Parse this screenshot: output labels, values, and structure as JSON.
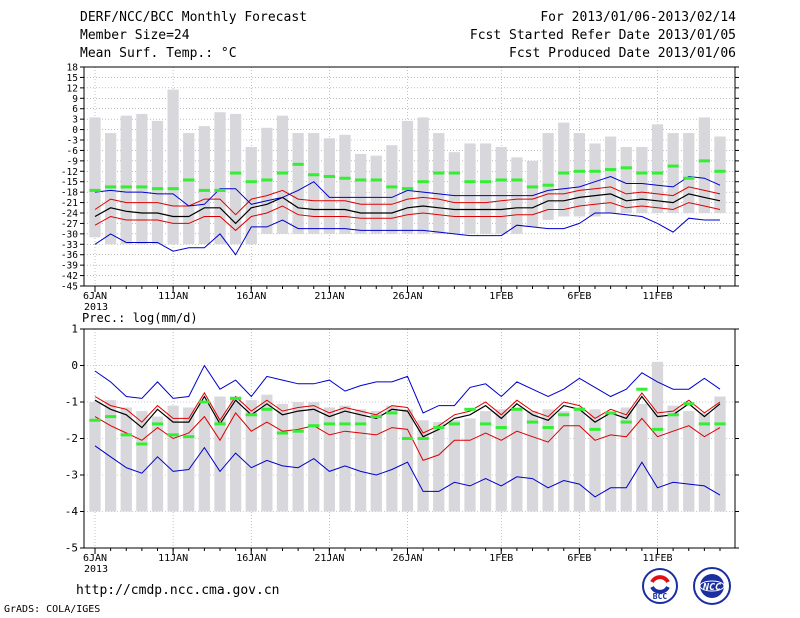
{
  "header": {
    "title": "DERF/NCC/BCC Monthly Forecast",
    "member_size": "Member Size=24",
    "variable": "Mean Surf. Temp.: °C",
    "period": "For 2013/01/06-2013/02/14",
    "started": "Fcst Started Refer Date 2013/01/05",
    "produced": "Fcst Produced Date 2013/01/06"
  },
  "footer": {
    "url": "http://cmdp.ncc.cma.gov.cn",
    "grads": "GrADS: COLA/IGES",
    "logo_bcc": "BCC",
    "logo_ncc": "NCC"
  },
  "colors": {
    "bar": "#d8d8dc",
    "mean": "#000000",
    "inner": "#dd0000",
    "outer": "#0000cc",
    "clim": "#33ee33",
    "grid": "#999999"
  },
  "chart_data": [
    {
      "type": "bar",
      "title": "Mean Surf. Temp.: °C",
      "xlabel": "",
      "ylabel": "",
      "ylim": [
        -45,
        18
      ],
      "yticks": [
        18,
        15,
        12,
        9,
        6,
        3,
        0,
        -3,
        -6,
        -9,
        -12,
        -15,
        -18,
        -21,
        -24,
        -27,
        -30,
        -33,
        -36,
        -39,
        -42,
        -45
      ],
      "xticks": [
        {
          "day": 0,
          "label": "6JAN",
          "sub": "2013"
        },
        {
          "day": 5,
          "label": "11JAN"
        },
        {
          "day": 10,
          "label": "16JAN"
        },
        {
          "day": 15,
          "label": "21JAN"
        },
        {
          "day": 20,
          "label": "26JAN"
        },
        {
          "day": 26,
          "label": "1FEB"
        },
        {
          "day": 31,
          "label": "6FEB"
        },
        {
          "day": 36,
          "label": "11FEB"
        }
      ],
      "bars_top": [
        3.5,
        -1,
        4,
        4.5,
        2.5,
        11.5,
        -1,
        1,
        5,
        4.5,
        -5,
        0.5,
        4,
        -1,
        -1,
        -2.5,
        -1.5,
        -7,
        -7.5,
        -4.5,
        2.5,
        3.5,
        -1,
        -6.5,
        -4,
        -4,
        -5,
        -8,
        -9,
        -1,
        2,
        -1,
        -4,
        -2,
        -5,
        -5,
        1.5,
        -1,
        -1,
        3.5,
        -2
      ],
      "bars_bottom": [
        -31,
        -33,
        -33,
        -33,
        -33,
        -33,
        -33,
        -33,
        -33,
        -33,
        -33,
        -30,
        -30,
        -30,
        -30,
        -30,
        -30,
        -30,
        -30,
        -30,
        -30,
        -30,
        -30,
        -30,
        -30,
        -30,
        -30,
        -30,
        -28,
        -26,
        -25,
        -25,
        -25,
        -24,
        -24,
        -24,
        -24,
        -24,
        -24,
        -24,
        -24
      ],
      "series": [
        {
          "name": "ensemble-mean",
          "values": [
            -25,
            -22.5,
            -23.5,
            -24,
            -24,
            -25,
            -25,
            -22.5,
            -22.5,
            -27,
            -22.5,
            -21.5,
            -19.5,
            -22.5,
            -23,
            -23,
            -23,
            -24,
            -24,
            -24,
            -22.5,
            -22,
            -22.5,
            -23,
            -23,
            -23,
            -23,
            -22.5,
            -22.5,
            -20.5,
            -20.5,
            -19.5,
            -19,
            -18.5,
            -20.5,
            -20,
            -20.5,
            -21,
            -18.5,
            -19.5,
            -20.5
          ]
        },
        {
          "name": "upper-inner",
          "values": [
            -23,
            -20,
            -21,
            -21,
            -21,
            -22,
            -22,
            -20,
            -20,
            -24.5,
            -20,
            -19,
            -17.5,
            -20,
            -20.5,
            -20.5,
            -20.5,
            -21.5,
            -21.5,
            -21.5,
            -20,
            -19.5,
            -20,
            -21,
            -21,
            -21,
            -20.5,
            -20,
            -20,
            -18.5,
            -18.5,
            -17.5,
            -17,
            -16.5,
            -18.5,
            -18,
            -18.5,
            -19,
            -16.5,
            -17.5,
            -18.5
          ]
        },
        {
          "name": "lower-inner",
          "values": [
            -27.5,
            -25,
            -26,
            -26,
            -26,
            -27,
            -27,
            -25,
            -25,
            -29,
            -25,
            -24,
            -22,
            -24.5,
            -25,
            -25,
            -25,
            -25.5,
            -25.5,
            -25.5,
            -24.5,
            -24,
            -24.5,
            -25,
            -25,
            -25,
            -25,
            -24.5,
            -24.5,
            -23,
            -23,
            -22,
            -21.5,
            -21,
            -22.5,
            -22,
            -22.5,
            -23,
            -21,
            -22,
            -23
          ]
        },
        {
          "name": "upper-outer",
          "values": [
            -18,
            -17.5,
            -18,
            -18,
            -18.5,
            -18.5,
            -22,
            -21.5,
            -17,
            -17,
            -21.5,
            -20.5,
            -19.5,
            -17.5,
            -15,
            -19.5,
            -19.5,
            -19.5,
            -19.5,
            -19.5,
            -17.5,
            -18,
            -18.5,
            -19,
            -19,
            -19,
            -19,
            -19,
            -19,
            -17.5,
            -17,
            -16.5,
            -15,
            -13.5,
            -15.5,
            -15.5,
            -16,
            -16.5,
            -13.5,
            -14,
            -16
          ]
        },
        {
          "name": "lower-outer",
          "values": [
            -33,
            -30,
            -32.5,
            -32.5,
            -32.5,
            -35,
            -34,
            -34,
            -30,
            -36,
            -28,
            -28,
            -26,
            -28.5,
            -28.5,
            -28.5,
            -28.5,
            -29,
            -29,
            -29,
            -29,
            -29,
            -29.5,
            -30,
            -30.5,
            -30.5,
            -30.5,
            -27.5,
            -28,
            -28.5,
            -28.5,
            -27,
            -24,
            -24,
            -24.5,
            -25,
            -27,
            -29.5,
            -25.5,
            -26,
            -26
          ]
        },
        {
          "name": "climatology",
          "values": [
            -17.5,
            -16.5,
            -16.5,
            -16.5,
            -17,
            -17,
            -14.5,
            -17.5,
            -17.5,
            -12.5,
            -15,
            -14.5,
            -12.5,
            -10,
            -13,
            -13.5,
            -14,
            -14.5,
            -14.5,
            -16.5,
            -17,
            -15,
            -12.5,
            -12.5,
            -15,
            -15,
            -14.5,
            -14.5,
            -16.5,
            -16,
            -12.5,
            -12,
            -12,
            -11.5,
            -11,
            -12.5,
            -12.5,
            -10.5,
            -14,
            -9,
            -12
          ]
        }
      ]
    },
    {
      "type": "bar",
      "title": "Prec.: log(mm/d)",
      "xlabel": "",
      "ylabel": "",
      "ylim": [
        -5,
        1
      ],
      "yticks": [
        1,
        0,
        -1,
        -2,
        -3,
        -4,
        -5
      ],
      "xticks": [
        {
          "day": 0,
          "label": "6JAN",
          "sub": "2013"
        },
        {
          "day": 5,
          "label": "11JAN"
        },
        {
          "day": 10,
          "label": "16JAN"
        },
        {
          "day": 15,
          "label": "21JAN"
        },
        {
          "day": 20,
          "label": "26JAN"
        },
        {
          "day": 26,
          "label": "1FEB"
        },
        {
          "day": 31,
          "label": "6FEB"
        },
        {
          "day": 36,
          "label": "11FEB"
        }
      ],
      "bars_top": [
        -1,
        -0.95,
        -1.15,
        -1.25,
        -1.4,
        -1.1,
        -1.15,
        -1.05,
        -0.85,
        -0.85,
        -0.95,
        -0.8,
        -1.05,
        -1,
        -1,
        -1.15,
        -1.1,
        -1.2,
        -1.25,
        -1.1,
        -1.2,
        -1.5,
        -1.55,
        -1.5,
        -1.45,
        -1.25,
        -1.2,
        -1.15,
        -1.25,
        -1.2,
        -1.25,
        -1.15,
        -1.2,
        -1.3,
        -1.15,
        -1.05,
        0.1,
        -1.1,
        -1.25,
        -1.3,
        -0.85
      ],
      "bars_bottom": [
        -4,
        -4,
        -4,
        -4,
        -4,
        -4,
        -4,
        -4,
        -4,
        -4,
        -4,
        -4,
        -4,
        -4,
        -4,
        -4,
        -4,
        -4,
        -4,
        -4,
        -4,
        -4,
        -4,
        -4,
        -4,
        -4,
        -4,
        -4,
        -4,
        -4,
        -4,
        -4,
        -4,
        -4,
        -4,
        -4,
        -4,
        -4,
        -4,
        -4,
        -4
      ],
      "series": [
        {
          "name": "ensemble-mean",
          "values": [
            -0.95,
            -1.2,
            -1.35,
            -1.7,
            -1.2,
            -1.55,
            -1.55,
            -0.85,
            -1.6,
            -0.95,
            -1.35,
            -1.05,
            -1.35,
            -1.25,
            -1.2,
            -1.4,
            -1.25,
            -1.35,
            -1.45,
            -1.2,
            -1.25,
            -1.95,
            -1.75,
            -1.45,
            -1.35,
            -1.1,
            -1.45,
            -1.05,
            -1.35,
            -1.5,
            -1.1,
            -1.2,
            -1.55,
            -1.3,
            -1.45,
            -0.85,
            -1.4,
            -1.35,
            -1.05,
            -1.4,
            -1.05
          ]
        },
        {
          "name": "upper-inner",
          "values": [
            -0.85,
            -1.1,
            -1.2,
            -1.55,
            -1.1,
            -1.45,
            -1.45,
            -0.75,
            -1.5,
            -0.85,
            -1.25,
            -0.95,
            -1.25,
            -1.15,
            -1.1,
            -1.3,
            -1.15,
            -1.25,
            -1.35,
            -1.1,
            -1.15,
            -1.85,
            -1.65,
            -1.35,
            -1.25,
            -1,
            -1.35,
            -0.95,
            -1.25,
            -1.4,
            -1,
            -1.1,
            -1.45,
            -1.2,
            -1.35,
            -0.75,
            -1.3,
            -1.25,
            -0.95,
            -1.3,
            -1
          ]
        },
        {
          "name": "lower-inner",
          "values": [
            -1.4,
            -1.65,
            -1.85,
            -2.05,
            -1.7,
            -2,
            -1.85,
            -1.4,
            -2.05,
            -1.3,
            -1.8,
            -1.55,
            -1.8,
            -1.75,
            -1.65,
            -1.9,
            -1.8,
            -1.85,
            -1.9,
            -1.7,
            -1.75,
            -2.6,
            -2.45,
            -2.05,
            -2.05,
            -1.85,
            -2.05,
            -1.8,
            -1.95,
            -2.1,
            -1.65,
            -1.65,
            -2.05,
            -1.9,
            -1.95,
            -1.45,
            -1.95,
            -1.8,
            -1.65,
            -1.95,
            -1.7
          ]
        },
        {
          "name": "upper-outer",
          "values": [
            -0.15,
            -0.45,
            -0.85,
            -0.9,
            -0.45,
            -0.9,
            -0.85,
            0,
            -0.65,
            -0.4,
            -0.85,
            -0.3,
            -0.4,
            -0.5,
            -0.5,
            -0.4,
            -0.7,
            -0.55,
            -0.45,
            -0.45,
            -0.3,
            -1.3,
            -1.1,
            -1.1,
            -0.6,
            -0.5,
            -0.85,
            -0.45,
            -0.65,
            -0.85,
            -0.65,
            -0.35,
            -0.6,
            -0.85,
            -0.65,
            -0.2,
            -0.45,
            -0.65,
            -0.65,
            -0.35,
            -0.65
          ]
        },
        {
          "name": "lower-outer",
          "values": [
            -2.2,
            -2.5,
            -2.8,
            -2.95,
            -2.5,
            -2.9,
            -2.85,
            -2.25,
            -2.9,
            -2.4,
            -2.8,
            -2.6,
            -2.75,
            -2.8,
            -2.55,
            -2.9,
            -2.75,
            -2.9,
            -3,
            -2.85,
            -2.65,
            -3.45,
            -3.45,
            -3.2,
            -3.3,
            -3.1,
            -3.3,
            -3.05,
            -3.1,
            -3.35,
            -3.15,
            -3.25,
            -3.6,
            -3.35,
            -3.35,
            -2.65,
            -3.35,
            -3.2,
            -3.25,
            -3.3,
            -3.55
          ]
        },
        {
          "name": "climatology",
          "values": [
            -1.5,
            -1.4,
            -1.9,
            -2.15,
            -1.6,
            -1.9,
            -1.95,
            -1,
            -1.6,
            -0.9,
            -1.35,
            -1.2,
            -1.85,
            -1.8,
            -1.65,
            -1.6,
            -1.6,
            -1.6,
            -1.4,
            -1.3,
            -2,
            -2,
            -1.7,
            -1.6,
            -1.2,
            -1.6,
            -1.7,
            -1.2,
            -1.55,
            -1.7,
            -1.35,
            -1.2,
            -1.75,
            -1.3,
            -1.55,
            -0.65,
            -1.75,
            -1.35,
            -1.05,
            -1.6,
            -1.6
          ]
        }
      ]
    }
  ]
}
